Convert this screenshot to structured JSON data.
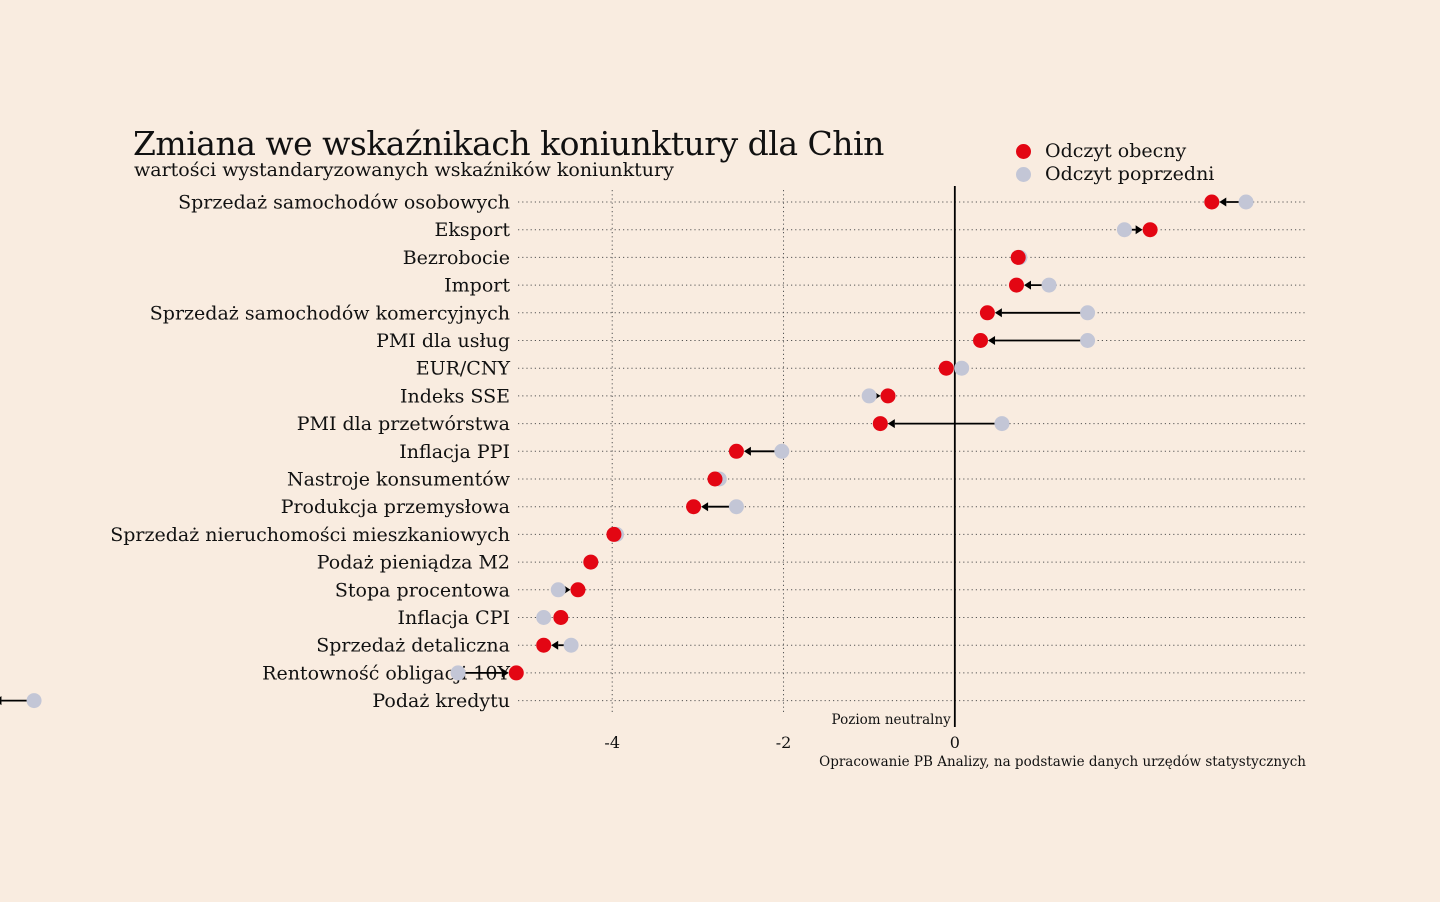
{
  "title": "Zmiana we wskaźnikach koniunktury dla Chin",
  "subtitle": "wartości wystandaryzowanych wskaźników koniunktury",
  "legend": [
    {
      "label": "Odczyt obecny",
      "color": "#e30613"
    },
    {
      "label": "Odczyt poprzedni",
      "color": "#c3c6d6"
    }
  ],
  "neutral_label": "Poziom neutralny",
  "source": "Opracowanie PB Analizy, na podstawie danych urzędów statystycznych",
  "chart_data": {
    "type": "dumbbell",
    "xlim": [
      -5.1,
      4.1
    ],
    "xticks": [
      {
        "value": -4,
        "label": "-4"
      },
      {
        "value": -2,
        "label": "-2"
      },
      {
        "value": 0,
        "label": "0"
      }
    ],
    "grid": "horizontal dotted",
    "legend_position": "top-right",
    "colors": {
      "current": "#e30613",
      "previous": "#c3c6d6",
      "arrow": "#000000"
    },
    "categories": [
      "Sprzedaż samochodów osobowych",
      "Eksport",
      "Bezrobocie",
      "Import",
      "Sprzedaż samochodów komercyjnych",
      "PMI dla usług",
      "EUR/CNY",
      "Indeks SSE",
      "PMI dla przetwórstwa",
      "Inflacja PPI",
      "Nastroje konsumentów",
      "Produkcja przemysłowa",
      "Sprzedaż nieruchomości mieszkaniowych",
      "Podaż pieniądza M2",
      "Stopa procentowa",
      "Inflacja CPI",
      "Sprzedaż detaliczna",
      "Rentowność obligacji 10Y",
      "Podaż kredytu"
    ],
    "series": [
      {
        "name": "Odczyt obecny",
        "values": [
          3.0,
          2.28,
          0.74,
          0.72,
          0.38,
          0.3,
          -0.1,
          -0.78,
          -0.87,
          -2.55,
          -2.8,
          -3.05,
          -3.98,
          -4.25,
          -4.4,
          -4.6,
          -4.8,
          -5.12,
          -11.3
        ]
      },
      {
        "name": "Odczyt poprzedni",
        "values": [
          3.4,
          1.98,
          0.76,
          1.1,
          1.55,
          1.55,
          0.08,
          -1.0,
          0.55,
          -2.02,
          -2.75,
          -2.55,
          -3.95,
          -4.25,
          -4.63,
          -4.8,
          -4.48,
          -5.8,
          -10.75
        ]
      }
    ]
  }
}
